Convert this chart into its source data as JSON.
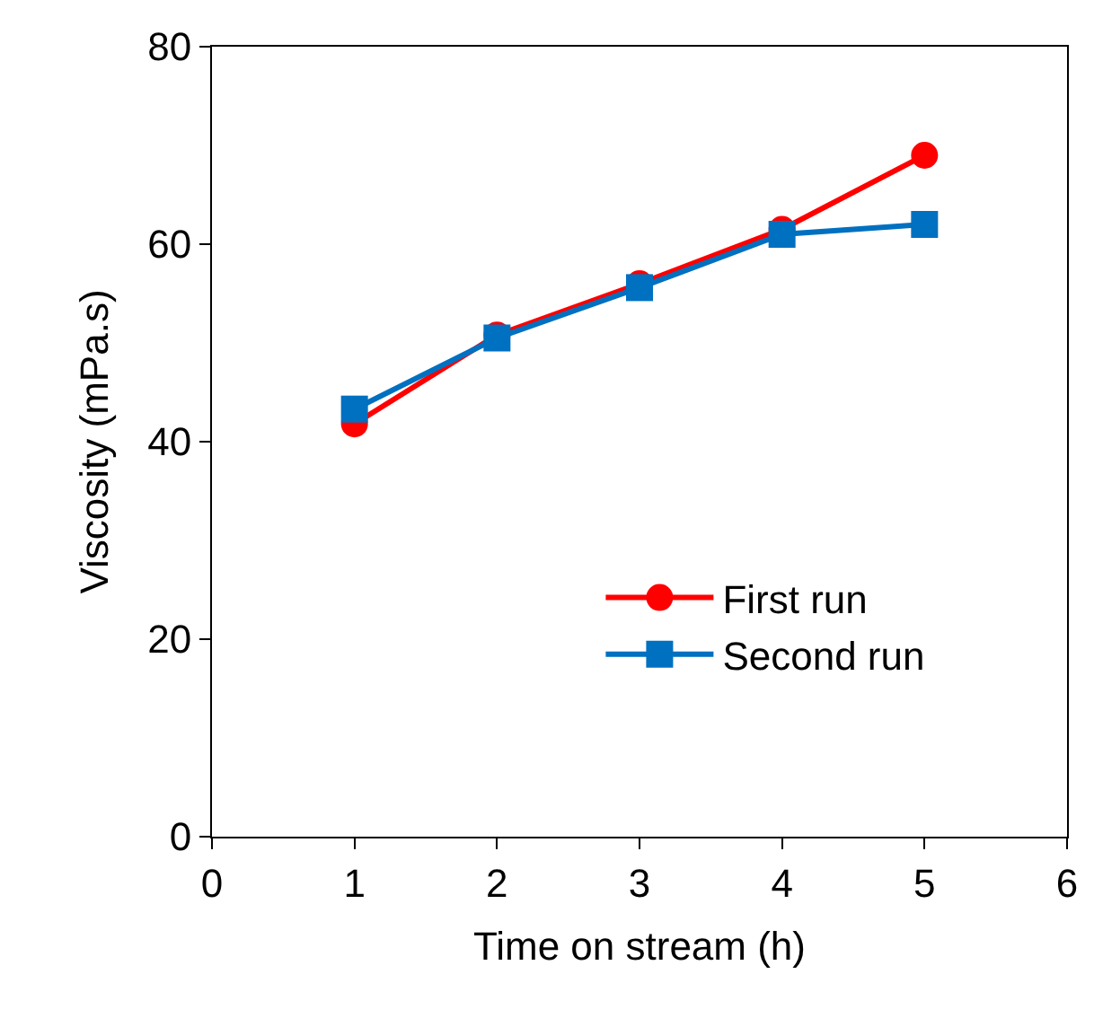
{
  "chart_data": {
    "type": "line",
    "xlabel": "Time on stream (h)",
    "ylabel": "Viscosity (mPa.s)",
    "x": [
      1,
      2,
      3,
      4,
      5
    ],
    "series": [
      {
        "name": "First run",
        "color": "#ff0000",
        "marker": "circle",
        "values": [
          41.8,
          50.8,
          56.0,
          61.5,
          69.0
        ]
      },
      {
        "name": "Second run",
        "color": "#0070c0",
        "marker": "square",
        "values": [
          43.3,
          50.5,
          55.6,
          61.0,
          62.0
        ]
      }
    ],
    "xlim": [
      0,
      6
    ],
    "xticks": [
      0,
      1,
      2,
      3,
      4,
      5,
      6
    ],
    "ylim": [
      0,
      80
    ],
    "yticks": [
      0,
      20,
      40,
      60,
      80
    ],
    "legend": "bottom right",
    "line_style": "solid"
  }
}
